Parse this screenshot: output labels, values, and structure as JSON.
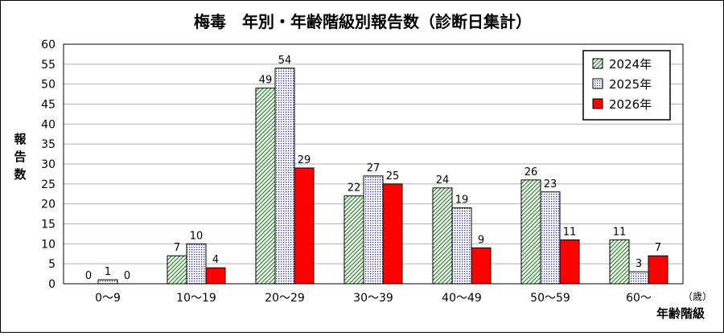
{
  "chart_data": {
    "type": "bar",
    "title": "梅毒　年別・年齢階級別報告数（診断日集計）",
    "ylabel": "報告数",
    "xlabel": "年齢階級",
    "x_unit": "（歳）",
    "ylim": [
      0,
      60
    ],
    "y_ticks": [
      "0",
      "5",
      "10",
      "15",
      "20",
      "25",
      "30",
      "35",
      "40",
      "45",
      "50",
      "55",
      "60"
    ],
    "grid": true,
    "legend_position": "top-right",
    "categories": [
      "0〜9",
      "10〜19",
      "20〜29",
      "30〜39",
      "40〜49",
      "50〜59",
      "60〜"
    ],
    "series": [
      {
        "name": "2024年",
        "values": [
          0,
          7,
          49,
          22,
          24,
          26,
          11
        ],
        "pattern": "diagonal-hatch-green",
        "color": "#2e8b2e"
      },
      {
        "name": "2025年",
        "values": [
          1,
          10,
          54,
          27,
          19,
          23,
          3
        ],
        "pattern": "dotted-blue",
        "color": "#2a2ad0"
      },
      {
        "name": "2026年",
        "values": [
          0,
          4,
          29,
          25,
          9,
          11,
          7
        ],
        "pattern": "solid-red",
        "color": "#ff0000"
      }
    ]
  }
}
